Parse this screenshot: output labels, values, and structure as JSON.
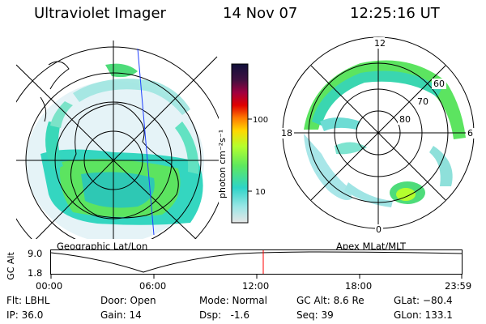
{
  "header": {
    "instrument": "Ultraviolet Imager",
    "date": "14 Nov 07",
    "time": "12:25:16 UT"
  },
  "left_panel": {
    "caption": "Geographic Lat/Lon"
  },
  "right_panel": {
    "caption": "Apex MLat/MLT",
    "mlt_labels": [
      "12",
      "18",
      "6",
      "0"
    ],
    "lat_labels": [
      "60",
      "70",
      "80"
    ]
  },
  "colorbar": {
    "unit_label": "photon cm⁻²s⁻¹",
    "ticks": [
      "100",
      "10"
    ],
    "scale": "log",
    "colors": [
      "#e6e6e6",
      "#9be6e6",
      "#2ed4c8",
      "#5ee85e",
      "#b4ff2e",
      "#ffd800",
      "#ff7a00",
      "#e00000",
      "#a00040",
      "#401040",
      "#10103a"
    ]
  },
  "altitude_plot": {
    "ylabel": "GC Alt",
    "y_ticks": [
      "9.0",
      "1.8"
    ],
    "x_ticks": [
      "00:00",
      "06:00",
      "12:00",
      "18:00",
      "23:59"
    ],
    "current_time_marker": "12:25",
    "marker_color": "#ff0000"
  },
  "status": {
    "flt": "Flt: LBHL",
    "ip": "IP: 36.0",
    "door": "Door: Open",
    "gain": "Gain: 14",
    "mode": "Mode: Normal",
    "dsp": "Dsp:   -1.6",
    "gc_alt": "GC Alt: 8.6 Re",
    "seq": "Seq: 39",
    "glat": "GLat: −80.4",
    "glon": "GLon: 133.1"
  }
}
